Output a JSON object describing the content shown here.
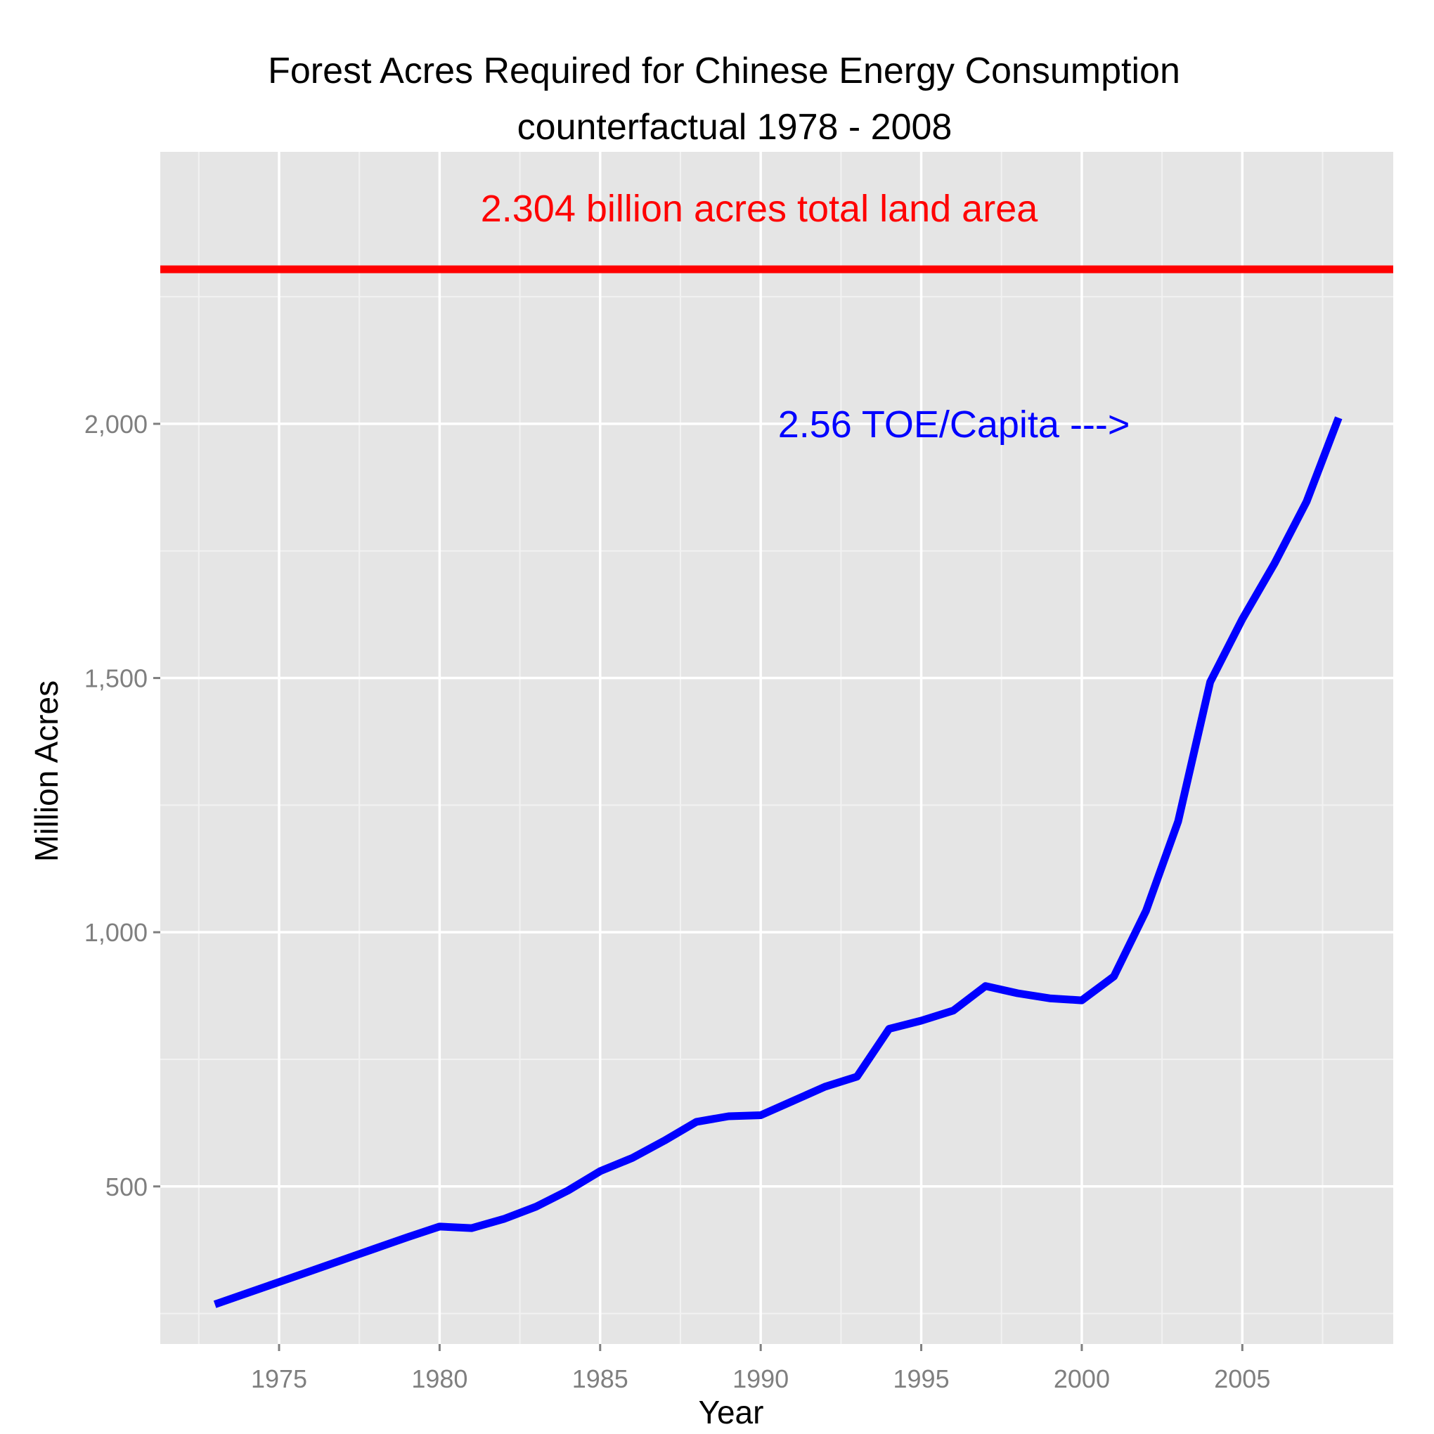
{
  "chart_data": {
    "type": "line",
    "title": "Forest Acres Required for Chinese Energy Consumption",
    "subtitle": "counterfactual 1978 - 2008",
    "xlabel": "Year",
    "ylabel": "Million Acres",
    "xlim": [
      1971.3,
      2009.7
    ],
    "ylim": [
      190,
      2535
    ],
    "x_ticks": [
      1975,
      1980,
      1985,
      1990,
      1995,
      2000,
      2005
    ],
    "x_tick_labels": [
      "1975",
      "1980",
      "1985",
      "1990",
      "1995",
      "2000",
      "2005"
    ],
    "y_ticks": [
      500,
      1000,
      1500,
      2000
    ],
    "y_tick_labels": [
      "500",
      "1,000",
      "1,500",
      "2,000"
    ],
    "grid": true,
    "series": [
      {
        "color": "#0000ff",
        "x": [
          1973,
          1974,
          1975,
          1976,
          1977,
          1978,
          1979,
          1980,
          1981,
          1982,
          1983,
          1984,
          1985,
          1986,
          1987,
          1988,
          1989,
          1990,
          1991,
          1992,
          1993,
          1994,
          1995,
          1996,
          1997,
          1998,
          1999,
          2000,
          2001,
          2002,
          2003,
          2004,
          2005,
          2006,
          2007,
          2008
        ],
        "y": [
          268,
          290,
          312,
          334,
          356,
          378,
          400,
          421,
          418,
          436,
          460,
          492,
          530,
          556,
          590,
          627,
          638,
          640,
          668,
          696,
          716,
          810,
          826,
          846,
          894,
          880,
          870,
          866,
          913,
          1042,
          1218,
          1492,
          1616,
          1725,
          1847,
          2012
        ]
      }
    ],
    "reference_line": {
      "y": 2304,
      "color": "#ff0000",
      "label": "2.304 billion acres total land area"
    },
    "annotations": [
      {
        "text": "2.56 TOE/Capita --->",
        "x": 2001.5,
        "y": 2000,
        "color": "#0000ff"
      }
    ],
    "colors": {
      "panel_background": "#e5e5e5",
      "grid_major": "#ffffff",
      "grid_minor": "#f2f2f2",
      "tick_text": "#7f7f7f"
    }
  }
}
